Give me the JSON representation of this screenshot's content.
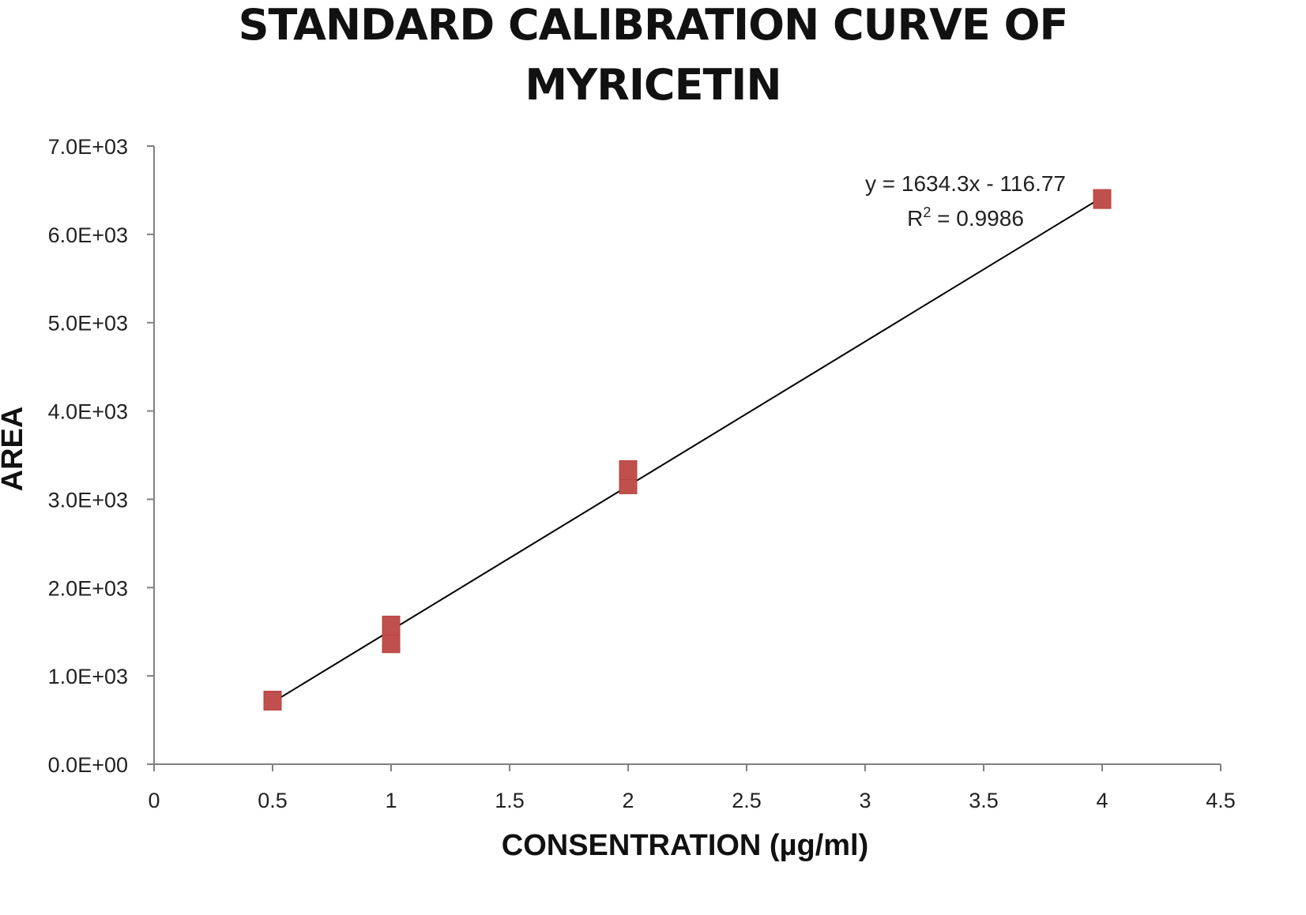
{
  "chart_data": {
    "type": "scatter",
    "title_lines": [
      "STANDARD CALIBRATION CURVE OF",
      "MYRICETIN"
    ],
    "xlabel": "CONSENTRATION (µg/ml)",
    "ylabel": "AREA",
    "xlim": [
      0,
      4.5
    ],
    "ylim": [
      0,
      7000
    ],
    "x_ticks": [
      {
        "value": 0,
        "label": "0"
      },
      {
        "value": 0.5,
        "label": "0.5"
      },
      {
        "value": 1,
        "label": "1"
      },
      {
        "value": 1.5,
        "label": "1.5"
      },
      {
        "value": 2,
        "label": "2"
      },
      {
        "value": 2.5,
        "label": "2.5"
      },
      {
        "value": 3,
        "label": "3"
      },
      {
        "value": 3.5,
        "label": "3.5"
      },
      {
        "value": 4,
        "label": "4"
      },
      {
        "value": 4.5,
        "label": "4.5"
      }
    ],
    "y_ticks": [
      {
        "value": 0,
        "label": "0.0E+00"
      },
      {
        "value": 1000,
        "label": "1.0E+03"
      },
      {
        "value": 2000,
        "label": "2.0E+03"
      },
      {
        "value": 3000,
        "label": "3.0E+03"
      },
      {
        "value": 4000,
        "label": "4.0E+03"
      },
      {
        "value": 5000,
        "label": "5.0E+03"
      },
      {
        "value": 6000,
        "label": "6.0E+03"
      },
      {
        "value": 7000,
        "label": "7.0E+03"
      }
    ],
    "grid": false,
    "legend": "none",
    "series": [
      {
        "marker": "square",
        "color": "#c0504d",
        "points": [
          {
            "x": 0.5,
            "y": 720
          },
          {
            "x": 1,
            "y": 1370
          },
          {
            "x": 1,
            "y": 1570
          },
          {
            "x": 2,
            "y": 3170
          },
          {
            "x": 2,
            "y": 3330
          },
          {
            "x": 4,
            "y": 6400
          }
        ]
      }
    ],
    "trendline": {
      "type": "linear",
      "slope": 1634.3,
      "intercept": -116.77,
      "x_range": [
        0.5,
        4
      ],
      "color": "#000000"
    },
    "annotations": {
      "equation": "y = 1634.3x - 116.77",
      "r_squared_prefix": "R",
      "r_squared_sup": "2",
      "r_squared_value": " = 0.9986"
    }
  }
}
